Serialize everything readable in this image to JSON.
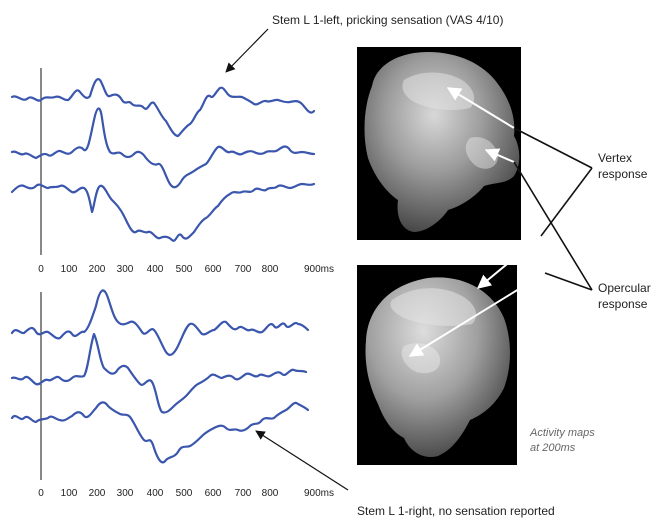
{
  "labels": {
    "top_caption": "Stem L 1-left, pricking sensation (VAS 4/10)",
    "bottom_caption": "Stem L 1-right, no sensation reported",
    "vertex_line1": "Vertex",
    "vertex_line2": "response",
    "opercular_line1": "Opercular",
    "opercular_line2": "response",
    "maps_line1": "Activity maps",
    "maps_line2": "at 200ms"
  },
  "axis": {
    "ticks": [
      "0",
      "100",
      "200",
      "300",
      "400",
      "500",
      "600",
      "700",
      "800",
      "900ms"
    ]
  },
  "colors": {
    "trace": "#3a56ad",
    "caption_gray": "#666666",
    "map_background": "#000000"
  }
}
